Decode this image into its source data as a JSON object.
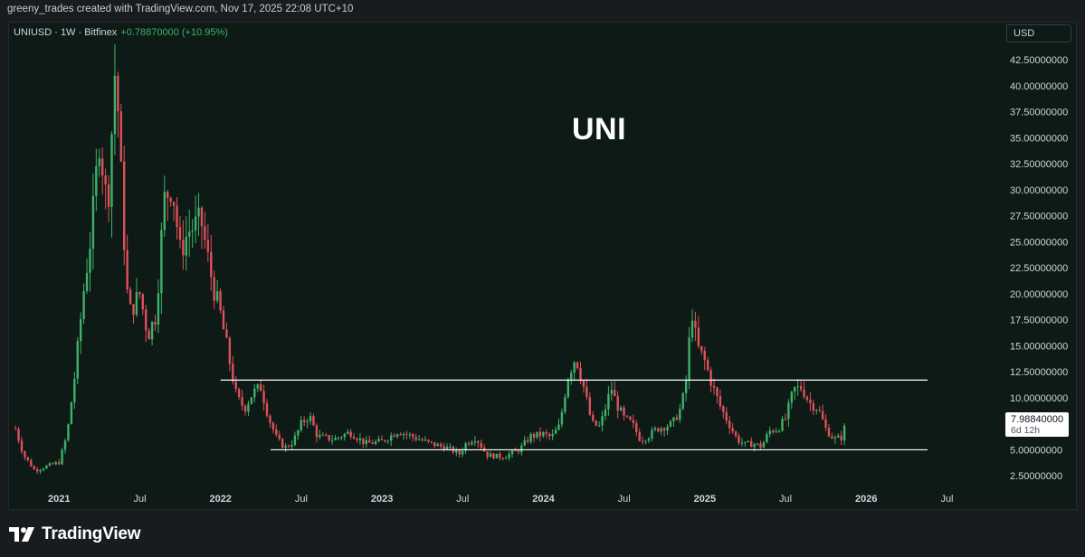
{
  "header": {
    "attribution": "greeny_trades created with TradingView.com, Nov 17, 2025 22:08 UTC+10"
  },
  "legend": {
    "symbol": "UNIUSD · 1W · Bitfinex",
    "change": "+0.78870000 (+10.95%)"
  },
  "currency": "USD",
  "price_badge": {
    "price": "7.98840000",
    "countdown": "6d 12h"
  },
  "branding": "TradingView",
  "colors": {
    "up": "#3fb16a",
    "down": "#e0505c",
    "background": "#0d1a15",
    "level_line": "#ffffff"
  },
  "chart_data": {
    "type": "candlestick",
    "title": "UNI",
    "timeframe": "1W",
    "x_tick_labels": [
      "2021",
      "Jul",
      "2022",
      "Jul",
      "2023",
      "Jul",
      "2024",
      "Jul",
      "2025",
      "Jul",
      "2026",
      "Jul"
    ],
    "y_tick_labels": [
      "42.50000000",
      "40.00000000",
      "37.50000000",
      "35.00000000",
      "32.50000000",
      "30.00000000",
      "27.50000000",
      "25.00000000",
      "22.50000000",
      "20.00000000",
      "17.50000000",
      "15.00000000",
      "12.50000000",
      "10.00000000",
      "7.50000000",
      "5.00000000",
      "2.50000000"
    ],
    "ylim": [
      1.3,
      45.2
    ],
    "y_scale": "linear",
    "x_range": [
      2020.69,
      2026.8
    ],
    "horizontal_levels": [
      {
        "price": 11.7,
        "from": 2022.0,
        "to": 2026.38
      },
      {
        "price": 5.0,
        "from": 2022.31,
        "to": 2026.38
      }
    ],
    "last_price": 7.9884,
    "price_path": [
      [
        2020.73,
        7.0
      ],
      [
        2020.78,
        4.5
      ],
      [
        2020.85,
        3.0
      ],
      [
        2020.92,
        3.4
      ],
      [
        2021.0,
        3.8
      ],
      [
        2021.05,
        6.5
      ],
      [
        2021.1,
        12.5
      ],
      [
        2021.15,
        20
      ],
      [
        2021.2,
        26
      ],
      [
        2021.25,
        35
      ],
      [
        2021.3,
        28
      ],
      [
        2021.35,
        42.5
      ],
      [
        2021.4,
        26
      ],
      [
        2021.43,
        18
      ],
      [
        2021.5,
        20
      ],
      [
        2021.55,
        16
      ],
      [
        2021.6,
        18
      ],
      [
        2021.65,
        29
      ],
      [
        2021.7,
        30.5
      ],
      [
        2021.75,
        24
      ],
      [
        2021.8,
        26
      ],
      [
        2021.88,
        27
      ],
      [
        2021.95,
        21
      ],
      [
        2022.0,
        18
      ],
      [
        2022.05,
        14
      ],
      [
        2022.1,
        10
      ],
      [
        2022.15,
        9
      ],
      [
        2022.2,
        10.5
      ],
      [
        2022.25,
        11
      ],
      [
        2022.3,
        8
      ],
      [
        2022.35,
        6
      ],
      [
        2022.4,
        5.2
      ],
      [
        2022.45,
        5.8
      ],
      [
        2022.5,
        7.5
      ],
      [
        2022.55,
        8.3
      ],
      [
        2022.6,
        6.3
      ],
      [
        2022.7,
        6
      ],
      [
        2022.8,
        6.7
      ],
      [
        2022.9,
        5.6
      ],
      [
        2023.0,
        5.8
      ],
      [
        2023.1,
        6.8
      ],
      [
        2023.2,
        6.2
      ],
      [
        2023.3,
        5.6
      ],
      [
        2023.4,
        5.2
      ],
      [
        2023.48,
        4.6
      ],
      [
        2023.52,
        5.6
      ],
      [
        2023.58,
        6.2
      ],
      [
        2023.65,
        4.5
      ],
      [
        2023.75,
        4.3
      ],
      [
        2023.85,
        5
      ],
      [
        2023.92,
        6.3
      ],
      [
        2024.0,
        6.5
      ],
      [
        2024.05,
        6.2
      ],
      [
        2024.1,
        7.3
      ],
      [
        2024.15,
        12
      ],
      [
        2024.2,
        14
      ],
      [
        2024.25,
        11
      ],
      [
        2024.3,
        7.5
      ],
      [
        2024.35,
        7.2
      ],
      [
        2024.42,
        11
      ],
      [
        2024.45,
        9.5
      ],
      [
        2024.5,
        8
      ],
      [
        2024.55,
        7.5
      ],
      [
        2024.6,
        6
      ],
      [
        2024.65,
        6.3
      ],
      [
        2024.7,
        7
      ],
      [
        2024.8,
        7.5
      ],
      [
        2024.85,
        9
      ],
      [
        2024.88,
        11
      ],
      [
        2024.92,
        18.5
      ],
      [
        2024.95,
        15
      ],
      [
        2025.0,
        13.5
      ],
      [
        2025.05,
        11
      ],
      [
        2025.1,
        9
      ],
      [
        2025.15,
        7.5
      ],
      [
        2025.2,
        6
      ],
      [
        2025.25,
        5.5
      ],
      [
        2025.3,
        5.6
      ],
      [
        2025.35,
        5.3
      ],
      [
        2025.4,
        6.8
      ],
      [
        2025.45,
        7
      ],
      [
        2025.5,
        8
      ],
      [
        2025.55,
        10.8
      ],
      [
        2025.6,
        11
      ],
      [
        2025.65,
        9.5
      ],
      [
        2025.7,
        9
      ],
      [
        2025.75,
        7
      ],
      [
        2025.8,
        6
      ],
      [
        2025.85,
        6.2
      ],
      [
        2025.88,
        7.99
      ]
    ]
  }
}
